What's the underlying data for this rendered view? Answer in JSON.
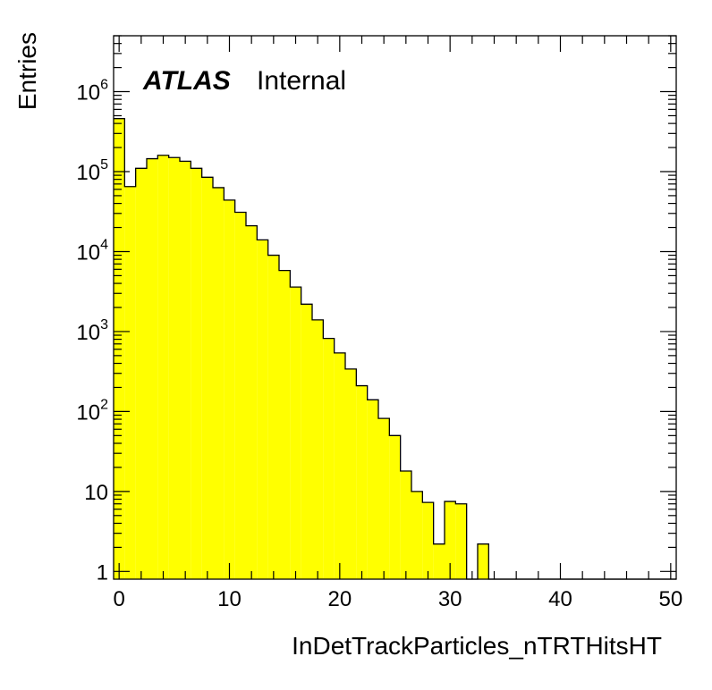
{
  "chart_data": {
    "type": "bar",
    "style": "histogram",
    "fill_color": "#ffff00",
    "line_color": "#000000",
    "title": "",
    "xlabel": "InDetTrackParticles_nTRTHitsHT",
    "ylabel": "Entries",
    "xlim": [
      -0.5,
      50.5
    ],
    "ylim": [
      0.8,
      5000000
    ],
    "yscale": "log",
    "grid": false,
    "legend": "none",
    "experiment_label": "ATLAS",
    "status_label": "Internal",
    "x_ticks": [
      0,
      10,
      20,
      30,
      40,
      50
    ],
    "x_tick_labels": [
      "0",
      "10",
      "20",
      "30",
      "40",
      "50"
    ],
    "y_ticks": [
      1,
      10,
      100,
      1000,
      10000,
      100000,
      1000000
    ],
    "y_tick_labels": [
      {
        "base": "1",
        "exp": ""
      },
      {
        "base": "10",
        "exp": ""
      },
      {
        "base": "10",
        "exp": "2"
      },
      {
        "base": "10",
        "exp": "3"
      },
      {
        "base": "10",
        "exp": "4"
      },
      {
        "base": "10",
        "exp": "5"
      },
      {
        "base": "10",
        "exp": "6"
      }
    ],
    "bin_edges": [
      -0.5,
      0.5,
      1.5,
      2.5,
      3.5,
      4.5,
      5.5,
      6.5,
      7.5,
      8.5,
      9.5,
      10.5,
      11.5,
      12.5,
      13.5,
      14.5,
      15.5,
      16.5,
      17.5,
      18.5,
      19.5,
      20.5,
      21.5,
      22.5,
      23.5,
      24.5,
      25.5,
      26.5,
      27.5,
      28.5,
      29.5,
      30.5,
      31.5,
      32.5,
      33.5,
      34.5,
      35.5,
      36.5,
      37.5,
      38.5,
      39.5,
      40.5,
      41.5,
      42.5,
      43.5,
      44.5,
      45.5,
      46.5,
      47.5,
      48.5,
      49.5,
      50.5
    ],
    "values": [
      460000,
      65000,
      110000,
      145000,
      160000,
      150000,
      135000,
      110000,
      85000,
      63000,
      44000,
      31000,
      21000,
      14000,
      9000,
      5800,
      3600,
      2200,
      1400,
      820,
      540,
      340,
      210,
      140,
      82,
      50,
      18,
      10,
      7.3,
      2.2,
      7.5,
      7.0,
      0,
      2.2,
      0,
      0,
      0,
      0,
      0,
      0,
      0,
      0,
      0,
      0,
      0,
      0,
      0,
      0,
      0,
      0,
      0
    ]
  }
}
